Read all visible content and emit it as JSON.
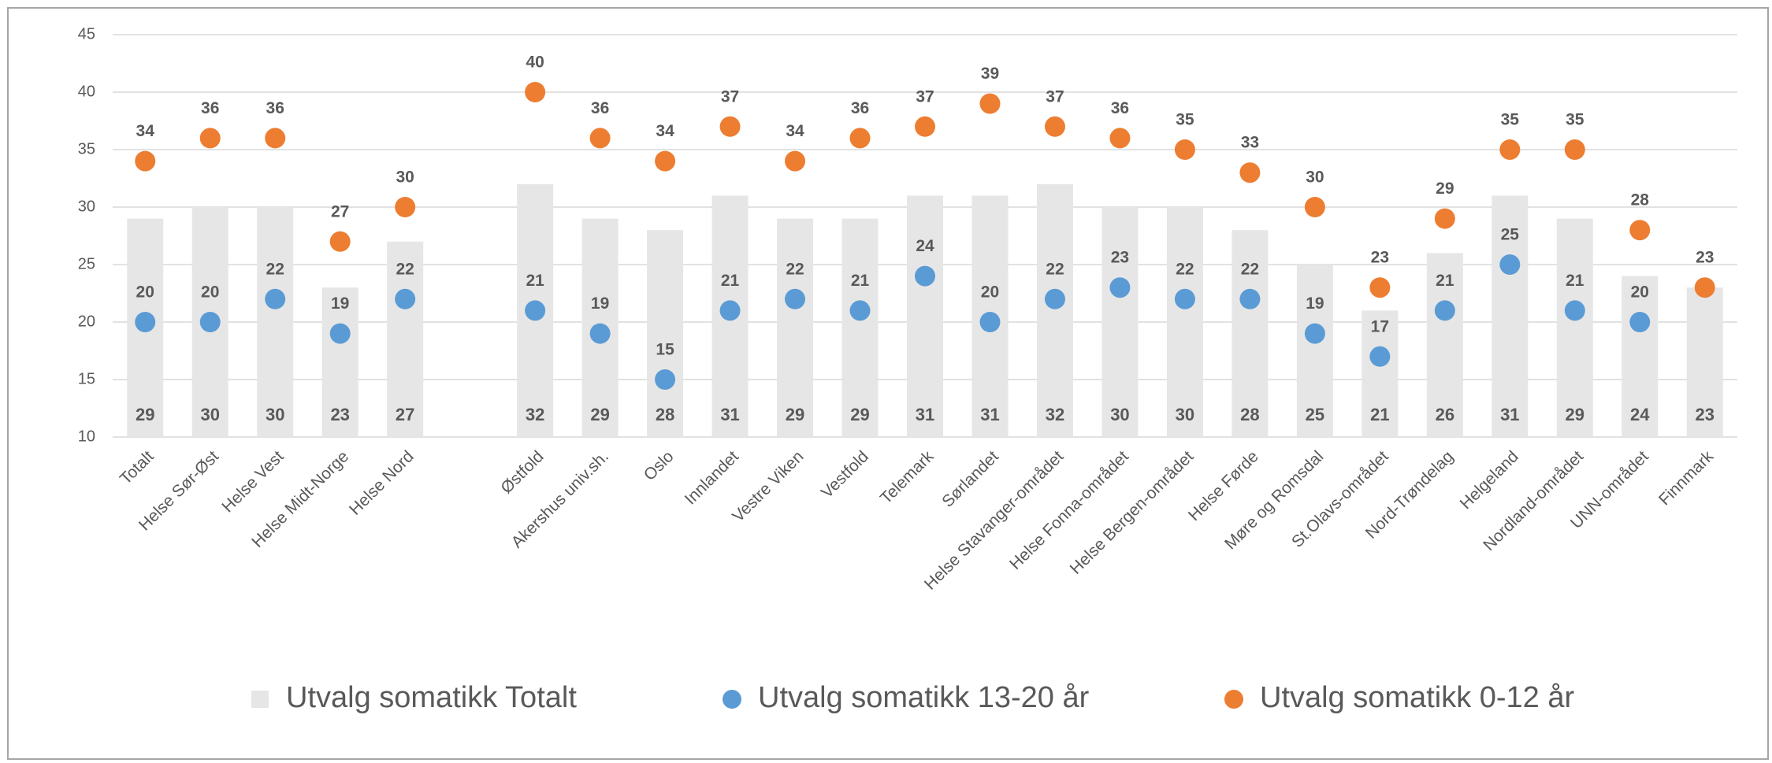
{
  "chart_data": {
    "type": "combo",
    "categories": [
      "Totalt",
      "Helse Sør-Øst",
      "Helse Vest",
      "Helse Midt-Norge",
      "Helse Nord",
      null,
      "Østfold",
      "Akershus univ.sh.",
      "Oslo",
      "Innlandet",
      "Vestre Viken",
      "Vestfold",
      "Telemark",
      "Sørlandet",
      "Helse Stavanger-området",
      "Helse Fonna-området",
      "Helse Bergen-området",
      "Helse Førde",
      "Møre og Romsdal",
      "St.Olavs-området",
      "Nord-Trøndelag",
      "Helgeland",
      "Nordland-området",
      "UNN-området",
      "Finnmark"
    ],
    "series": [
      {
        "name": "Utvalg somatikk Totalt",
        "type": "bar",
        "color": "#e7e6e6",
        "label_color": "#404040",
        "values": [
          29,
          30,
          30,
          23,
          27,
          null,
          32,
          29,
          28,
          31,
          29,
          29,
          31,
          31,
          32,
          30,
          30,
          28,
          25,
          21,
          26,
          31,
          29,
          24,
          23
        ]
      },
      {
        "name": "Utvalg somatikk 13-20 år",
        "type": "scatter",
        "color": "#5b9bd5",
        "label_color": "#2f5597",
        "values": [
          20,
          20,
          22,
          19,
          22,
          null,
          21,
          19,
          15,
          21,
          22,
          21,
          24,
          20,
          22,
          23,
          22,
          22,
          19,
          17,
          21,
          25,
          21,
          20,
          null
        ]
      },
      {
        "name": "Utvalg somatikk 0-12 år",
        "type": "scatter",
        "color": "#ed7d31",
        "label_color": "#ed7d31",
        "values": [
          34,
          36,
          36,
          27,
          30,
          null,
          40,
          36,
          34,
          37,
          34,
          36,
          37,
          39,
          37,
          36,
          35,
          33,
          30,
          23,
          29,
          35,
          35,
          28,
          23
        ]
      }
    ],
    "ylim": [
      10,
      45
    ],
    "yticks": [
      10,
      15,
      20,
      25,
      30,
      35,
      40,
      45
    ],
    "grid": true,
    "legend": "bottom"
  }
}
